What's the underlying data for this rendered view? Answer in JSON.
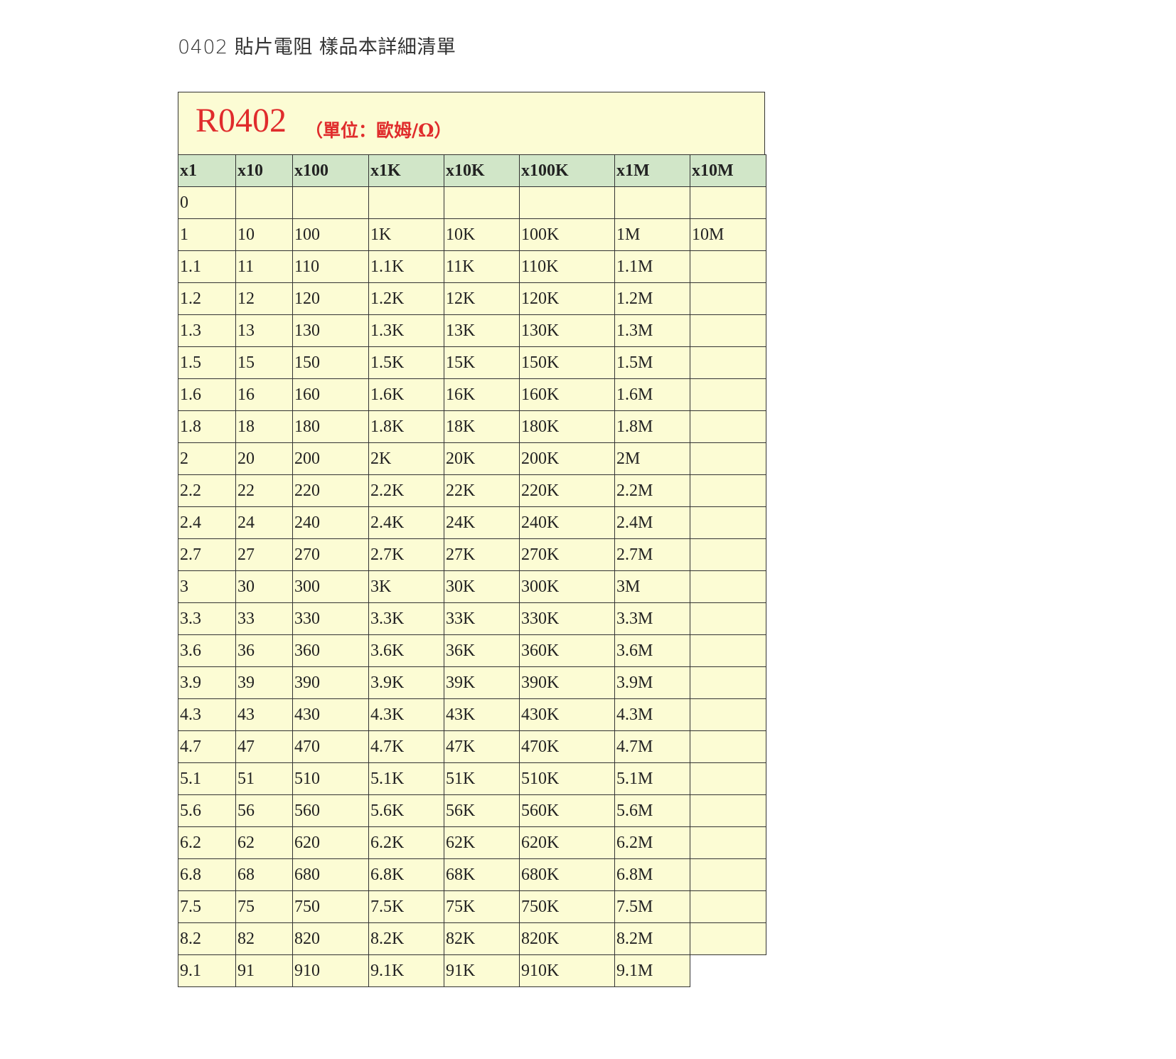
{
  "document": {
    "title": "0402 貼片電阻  樣品本詳細清單"
  },
  "table": {
    "code": "R0402",
    "unit": "（單位：歐姆/Ω）",
    "headers": [
      "x1",
      "x10",
      "x100",
      "x1K",
      "x10K",
      "x100K",
      "x1M",
      "x10M"
    ],
    "rows": [
      [
        "0",
        "",
        "",
        "",
        "",
        "",
        "",
        ""
      ],
      [
        "1",
        "10",
        "100",
        "1K",
        "10K",
        "100K",
        "1M",
        "10M"
      ],
      [
        "1.1",
        "11",
        "110",
        "1.1K",
        "11K",
        "110K",
        "1.1M",
        ""
      ],
      [
        "1.2",
        "12",
        "120",
        "1.2K",
        "12K",
        "120K",
        "1.2M",
        ""
      ],
      [
        "1.3",
        "13",
        "130",
        "1.3K",
        "13K",
        "130K",
        "1.3M",
        ""
      ],
      [
        "1.5",
        "15",
        "150",
        "1.5K",
        "15K",
        "150K",
        "1.5M",
        ""
      ],
      [
        "1.6",
        "16",
        "160",
        "1.6K",
        "16K",
        "160K",
        "1.6M",
        ""
      ],
      [
        "1.8",
        "18",
        "180",
        "1.8K",
        "18K",
        "180K",
        "1.8M",
        ""
      ],
      [
        "2",
        "20",
        "200",
        "2K",
        "20K",
        "200K",
        "2M",
        ""
      ],
      [
        "2.2",
        "22",
        "220",
        "2.2K",
        "22K",
        "220K",
        "2.2M",
        ""
      ],
      [
        "2.4",
        "24",
        "240",
        "2.4K",
        "24K",
        "240K",
        "2.4M",
        ""
      ],
      [
        "2.7",
        "27",
        "270",
        "2.7K",
        "27K",
        "270K",
        "2.7M",
        ""
      ],
      [
        "3",
        "30",
        "300",
        "3K",
        "30K",
        "300K",
        "3M",
        ""
      ],
      [
        "3.3",
        "33",
        "330",
        "3.3K",
        "33K",
        "330K",
        "3.3M",
        ""
      ],
      [
        "3.6",
        "36",
        "360",
        "3.6K",
        "36K",
        "360K",
        "3.6M",
        ""
      ],
      [
        "3.9",
        "39",
        "390",
        "3.9K",
        "39K",
        "390K",
        "3.9M",
        ""
      ],
      [
        "4.3",
        "43",
        "430",
        "4.3K",
        "43K",
        "430K",
        "4.3M",
        ""
      ],
      [
        "4.7",
        "47",
        "470",
        "4.7K",
        "47K",
        "470K",
        "4.7M",
        ""
      ],
      [
        "5.1",
        "51",
        "510",
        "5.1K",
        "51K",
        "510K",
        "5.1M",
        ""
      ],
      [
        "5.6",
        "56",
        "560",
        "5.6K",
        "56K",
        "560K",
        "5.6M",
        ""
      ],
      [
        "6.2",
        "62",
        "620",
        "6.2K",
        "62K",
        "620K",
        "6.2M",
        ""
      ],
      [
        "6.8",
        "68",
        "680",
        "6.8K",
        "68K",
        "680K",
        "6.8M",
        ""
      ],
      [
        "7.5",
        "75",
        "750",
        "7.5K",
        "75K",
        "750K",
        "7.5M",
        ""
      ],
      [
        "8.2",
        "82",
        "820",
        "8.2K",
        "82K",
        "820K",
        "8.2M",
        ""
      ],
      [
        "9.1",
        "91",
        "910",
        "9.1K",
        "91K",
        "910K",
        "9.1M"
      ]
    ]
  },
  "colors": {
    "code": "#e02c2c",
    "header_bg": "#d1e6c8",
    "cell_bg": "#fcfcd4"
  }
}
